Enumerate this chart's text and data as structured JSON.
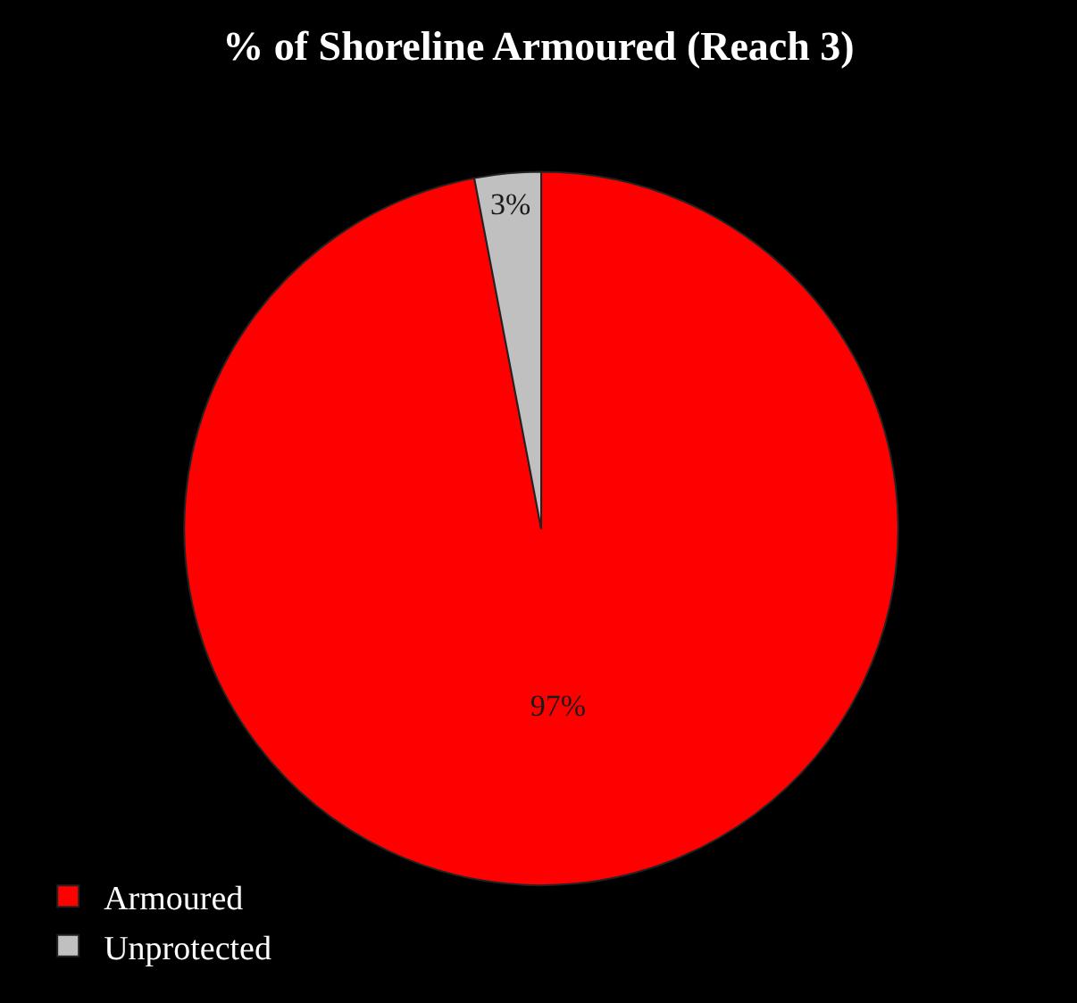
{
  "chart_data": {
    "type": "pie",
    "title": "% of Shoreline Armoured (Reach 3)",
    "categories": [
      "Armoured",
      "Unprotected"
    ],
    "values": [
      97,
      3
    ],
    "colors": [
      "#ff0000",
      "#c0c0c0"
    ],
    "value_labels": [
      "97%",
      "3%"
    ],
    "legend": "bottom left"
  }
}
